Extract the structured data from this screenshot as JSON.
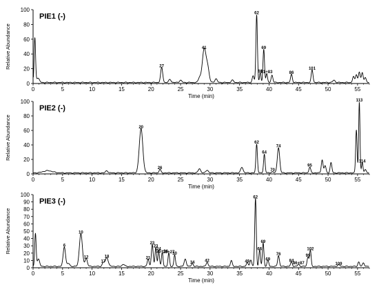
{
  "chart_data": [
    {
      "type": "line",
      "title": "PIE1 (-)",
      "xlabel": "Time (min)",
      "ylabel": "Relative Abundance",
      "xlim": [
        0,
        57
      ],
      "ylim": [
        0,
        100
      ],
      "x_ticks": [
        "0",
        "5",
        "10",
        "15",
        "20",
        "25",
        "30",
        "35",
        "40",
        "45",
        "50",
        "55"
      ],
      "y_ticks": [
        "0",
        "20",
        "40",
        "60",
        "80",
        "100"
      ],
      "baseline": 2,
      "peaks": [
        {
          "x": 0.3,
          "y": 60,
          "w": 0.12,
          "label": ""
        },
        {
          "x": 0.8,
          "y": 6,
          "w": 0.25,
          "label": ""
        },
        {
          "x": 21.8,
          "y": 20,
          "w": 0.18,
          "label": "27"
        },
        {
          "x": 23.2,
          "y": 4,
          "w": 0.2,
          "label": ""
        },
        {
          "x": 25.0,
          "y": 3,
          "w": 0.2,
          "label": ""
        },
        {
          "x": 28.2,
          "y": 6,
          "w": 0.2,
          "label": ""
        },
        {
          "x": 29.0,
          "y": 45,
          "w": 0.32,
          "label": "41"
        },
        {
          "x": 29.6,
          "y": 18,
          "w": 0.25,
          "label": ""
        },
        {
          "x": 31.0,
          "y": 5,
          "w": 0.2,
          "label": ""
        },
        {
          "x": 33.8,
          "y": 3,
          "w": 0.2,
          "label": ""
        },
        {
          "x": 37.3,
          "y": 9,
          "w": 0.15,
          "label": ""
        },
        {
          "x": 37.9,
          "y": 92,
          "w": 0.13,
          "label": "62"
        },
        {
          "x": 38.5,
          "y": 13,
          "w": 0.12,
          "label": "66"
        },
        {
          "x": 39.1,
          "y": 45,
          "w": 0.13,
          "label": "69"
        },
        {
          "x": 39.6,
          "y": 12,
          "w": 0.13,
          "label": "81+83"
        },
        {
          "x": 40.5,
          "y": 10,
          "w": 0.15,
          "label": ""
        },
        {
          "x": 43.8,
          "y": 11,
          "w": 0.15,
          "label": "86"
        },
        {
          "x": 47.3,
          "y": 17,
          "w": 0.15,
          "label": "101"
        },
        {
          "x": 51.0,
          "y": 3,
          "w": 0.2,
          "label": ""
        },
        {
          "x": 54.3,
          "y": 8,
          "w": 0.15,
          "label": ""
        },
        {
          "x": 54.8,
          "y": 11,
          "w": 0.15,
          "label": ""
        },
        {
          "x": 55.3,
          "y": 14,
          "w": 0.15,
          "label": ""
        },
        {
          "x": 55.8,
          "y": 13,
          "w": 0.15,
          "label": ""
        },
        {
          "x": 56.3,
          "y": 7,
          "w": 0.15,
          "label": ""
        }
      ]
    },
    {
      "type": "line",
      "title": "PIE2 (-)",
      "xlabel": "Time (min)",
      "ylabel": "Relative Abundance",
      "xlim": [
        0,
        57
      ],
      "ylim": [
        0,
        100
      ],
      "x_ticks": [
        "0",
        "5",
        "10",
        "15",
        "20",
        "25",
        "30",
        "35",
        "40",
        "45",
        "50",
        "55"
      ],
      "y_ticks": [
        "0",
        "20",
        "40",
        "60",
        "80",
        "100"
      ],
      "baseline": 2,
      "peaks": [
        {
          "x": 2.5,
          "y": 3,
          "w": 0.8,
          "label": ""
        },
        {
          "x": 12.5,
          "y": 3,
          "w": 0.2,
          "label": ""
        },
        {
          "x": 18.3,
          "y": 61,
          "w": 0.3,
          "label": "20"
        },
        {
          "x": 21.5,
          "y": 5,
          "w": 0.15,
          "label": "26"
        },
        {
          "x": 28.2,
          "y": 6,
          "w": 0.2,
          "label": ""
        },
        {
          "x": 29.5,
          "y": 4,
          "w": 0.2,
          "label": ""
        },
        {
          "x": 35.4,
          "y": 8,
          "w": 0.2,
          "label": ""
        },
        {
          "x": 37.9,
          "y": 40,
          "w": 0.13,
          "label": "62"
        },
        {
          "x": 39.2,
          "y": 26,
          "w": 0.13,
          "label": "64"
        },
        {
          "x": 40.6,
          "y": 2,
          "w": 0.15,
          "label": "70"
        },
        {
          "x": 41.6,
          "y": 35,
          "w": 0.2,
          "label": "74"
        },
        {
          "x": 46.9,
          "y": 8,
          "w": 0.15,
          "label": "95"
        },
        {
          "x": 49.0,
          "y": 18,
          "w": 0.15,
          "label": ""
        },
        {
          "x": 49.5,
          "y": 10,
          "w": 0.15,
          "label": ""
        },
        {
          "x": 50.5,
          "y": 14,
          "w": 0.15,
          "label": ""
        },
        {
          "x": 54.8,
          "y": 60,
          "w": 0.12,
          "label": ""
        },
        {
          "x": 55.3,
          "y": 98,
          "w": 0.11,
          "label": "113"
        },
        {
          "x": 55.8,
          "y": 14,
          "w": 0.12,
          "label": "114"
        },
        {
          "x": 56.3,
          "y": 5,
          "w": 0.15,
          "label": ""
        }
      ]
    },
    {
      "type": "line",
      "title": "PIE3 (-)",
      "xlabel": "Time (min)",
      "ylabel": "Relative Abundance",
      "xlim": [
        0,
        57
      ],
      "ylim": [
        0,
        100
      ],
      "x_ticks": [
        "0",
        "5",
        "10",
        "15",
        "20",
        "25",
        "30",
        "35",
        "40",
        "45",
        "50",
        "55"
      ],
      "y_ticks": [
        "0",
        "10",
        "20",
        "30",
        "40",
        "50",
        "60",
        "70",
        "80",
        "90",
        "100"
      ],
      "baseline": 3,
      "peaks": [
        {
          "x": 0.4,
          "y": 45,
          "w": 0.12,
          "label": ""
        },
        {
          "x": 0.9,
          "y": 10,
          "w": 0.2,
          "label": ""
        },
        {
          "x": 5.3,
          "y": 27,
          "w": 0.2,
          "label": "6"
        },
        {
          "x": 6.0,
          "y": 4,
          "w": 0.2,
          "label": ""
        },
        {
          "x": 8.1,
          "y": 45,
          "w": 0.25,
          "label": "10"
        },
        {
          "x": 9.0,
          "y": 11,
          "w": 0.2,
          "label": "12"
        },
        {
          "x": 11.9,
          "y": 5,
          "w": 0.18,
          "label": "17"
        },
        {
          "x": 12.5,
          "y": 12,
          "w": 0.25,
          "label": "18"
        },
        {
          "x": 15.3,
          "y": 3,
          "w": 0.2,
          "label": ""
        },
        {
          "x": 19.5,
          "y": 10,
          "w": 0.15,
          "label": "21"
        },
        {
          "x": 20.2,
          "y": 30,
          "w": 0.15,
          "label": "23"
        },
        {
          "x": 20.8,
          "y": 26,
          "w": 0.13,
          "label": "23"
        },
        {
          "x": 21.3,
          "y": 22,
          "w": 0.13,
          "label": "24"
        },
        {
          "x": 21.9,
          "y": 19,
          "w": 0.13,
          "label": "25+26"
        },
        {
          "x": 23.0,
          "y": 18,
          "w": 0.13,
          "label": "26+27"
        },
        {
          "x": 24.0,
          "y": 16,
          "w": 0.13,
          "label": "30"
        },
        {
          "x": 25.8,
          "y": 10,
          "w": 0.18,
          "label": ""
        },
        {
          "x": 27.0,
          "y": 4,
          "w": 0.15,
          "label": "34"
        },
        {
          "x": 29.5,
          "y": 6,
          "w": 0.15,
          "label": "42"
        },
        {
          "x": 33.6,
          "y": 8,
          "w": 0.15,
          "label": ""
        },
        {
          "x": 36.3,
          "y": 5,
          "w": 0.15,
          "label": "49"
        },
        {
          "x": 36.9,
          "y": 9,
          "w": 0.15,
          "label": ""
        },
        {
          "x": 37.7,
          "y": 93,
          "w": 0.13,
          "label": "62"
        },
        {
          "x": 38.4,
          "y": 22,
          "w": 0.13,
          "label": "66"
        },
        {
          "x": 39.0,
          "y": 32,
          "w": 0.13,
          "label": "69"
        },
        {
          "x": 39.8,
          "y": 8,
          "w": 0.15,
          "label": "69"
        },
        {
          "x": 41.6,
          "y": 15,
          "w": 0.15,
          "label": "76"
        },
        {
          "x": 43.8,
          "y": 6,
          "w": 0.15,
          "label": "84"
        },
        {
          "x": 45.0,
          "y": 3,
          "w": 0.15,
          "label": "86+87"
        },
        {
          "x": 46.6,
          "y": 13,
          "w": 0.15,
          "label": "99"
        },
        {
          "x": 47.0,
          "y": 22,
          "w": 0.13,
          "label": "102"
        },
        {
          "x": 51.8,
          "y": 2,
          "w": 0.2,
          "label": "109"
        },
        {
          "x": 55.2,
          "y": 6,
          "w": 0.15,
          "label": ""
        },
        {
          "x": 56.0,
          "y": 5,
          "w": 0.15,
          "label": ""
        }
      ]
    }
  ]
}
